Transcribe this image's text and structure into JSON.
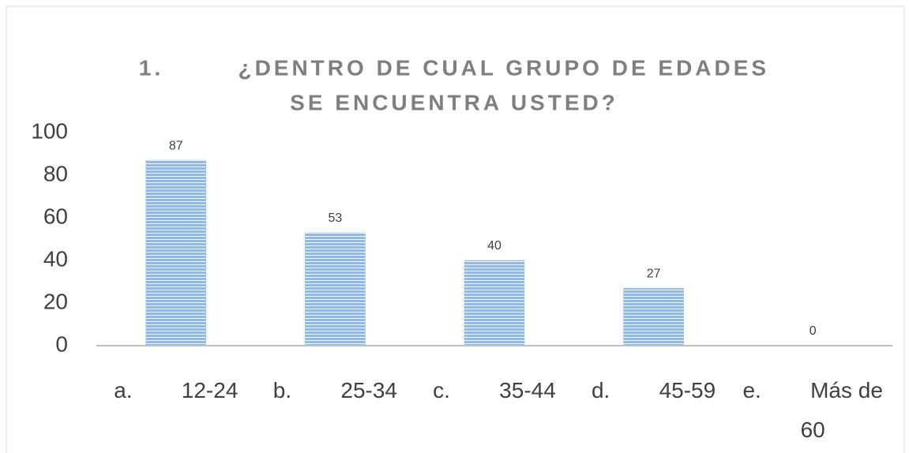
{
  "chart_data": {
    "type": "bar",
    "title": [
      "1.        ¿DENTRO DE CUAL GRUPO DE EDADES",
      "SE ENCUENTRA USTED?"
    ],
    "categories": [
      "a.        12-24",
      "b.        25-34",
      "c.        35-44",
      "d.        45-59",
      "e.        Más de 60"
    ],
    "values": [
      87,
      53,
      40,
      27,
      0
    ],
    "color": "#8fb9e6",
    "ylim": [
      0,
      100
    ],
    "yticks": [
      0,
      20,
      40,
      60,
      80,
      100
    ],
    "grid": false
  }
}
